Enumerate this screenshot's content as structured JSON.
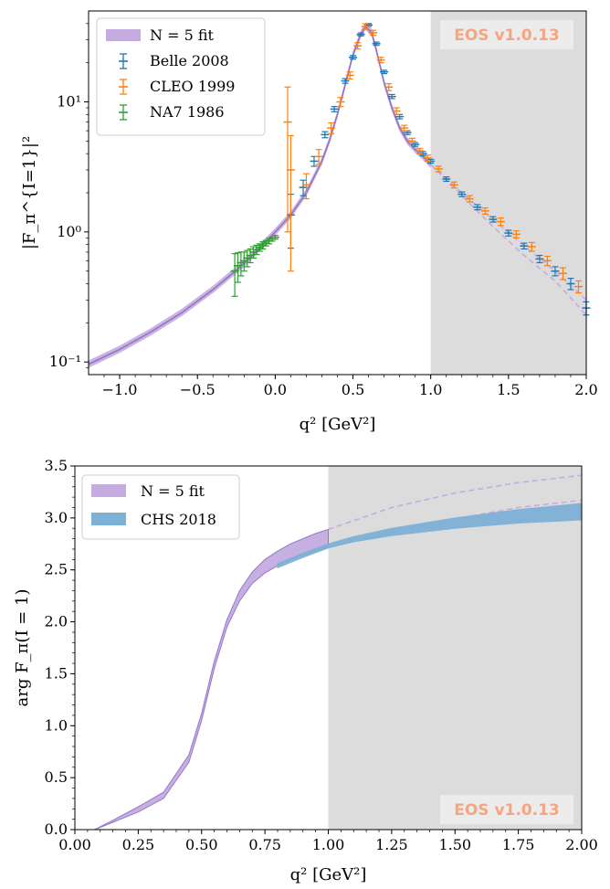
{
  "watermark": "EOS v1.0.13",
  "colors": {
    "fit": "#9370c8",
    "fit_band": "#c4abe0",
    "belle": "#1f77b4",
    "cleo": "#ff7f0e",
    "na7": "#2ca02c",
    "chs": "#7eb1d6",
    "shade": "#dcdcdc",
    "watermark": "#f4a582"
  },
  "chart_data": [
    {
      "type": "line",
      "xlabel": "q² [GeV²]",
      "ylabel": "|F_π^{I=1}|²",
      "yscale": "log",
      "xlim": [
        -1.2,
        2.0
      ],
      "ylim": [
        0.08,
        50
      ],
      "xticks": [
        "−1.0",
        "−0.5",
        "0.0",
        "0.5",
        "1.0",
        "1.5",
        "2.0"
      ],
      "xtick_values": [
        -1.0,
        -0.5,
        0.0,
        0.5,
        1.0,
        1.5,
        2.0
      ],
      "yticks": [
        "10⁻¹",
        "10⁰",
        "10¹"
      ],
      "ytick_values": [
        0.1,
        1,
        10
      ],
      "shaded_region": [
        1.0,
        2.0
      ],
      "legend_position": "top-left",
      "series": [
        {
          "name": "N = 5 fit",
          "kind": "band",
          "x": [
            -1.2,
            -1.0,
            -0.8,
            -0.6,
            -0.4,
            -0.2,
            0.0,
            0.1,
            0.2,
            0.3,
            0.35,
            0.4,
            0.45,
            0.5,
            0.55,
            0.58,
            0.62,
            0.65,
            0.7,
            0.75,
            0.8,
            0.85,
            0.9,
            0.95,
            1.0
          ],
          "y": [
            0.096,
            0.125,
            0.17,
            0.24,
            0.36,
            0.57,
            1.0,
            1.35,
            2.0,
            3.5,
            5.1,
            8.0,
            13.5,
            23.0,
            33.0,
            38.0,
            34.0,
            25.0,
            14.0,
            9.0,
            6.3,
            5.0,
            4.3,
            3.8,
            3.3
          ]
        },
        {
          "name": "N = 5 fit (extrapolation, lower)",
          "kind": "dashed",
          "x": [
            1.0,
            1.2,
            1.4,
            1.6,
            1.8,
            2.0
          ],
          "y": [
            3.3,
            1.9,
            1.1,
            0.66,
            0.42,
            0.23
          ]
        },
        {
          "name": "N = 5 fit (extrapolation, upper)",
          "kind": "dashed",
          "x": [
            1.0,
            1.2,
            1.4,
            1.6,
            1.8,
            2.0
          ],
          "y": [
            3.3,
            2.0,
            1.25,
            0.78,
            0.5,
            0.3
          ]
        },
        {
          "name": "Belle 2008",
          "kind": "errorbar",
          "x": [
            0.1,
            0.18,
            0.25,
            0.32,
            0.38,
            0.45,
            0.5,
            0.55,
            0.6,
            0.65,
            0.7,
            0.75,
            0.8,
            0.85,
            0.9,
            0.95,
            1.0,
            1.1,
            1.2,
            1.3,
            1.4,
            1.5,
            1.6,
            1.7,
            1.8,
            1.9,
            2.0
          ],
          "y": [
            1.35,
            2.2,
            3.5,
            5.6,
            8.8,
            14.5,
            22.0,
            33.0,
            39.0,
            28.0,
            17.0,
            11.0,
            7.7,
            5.8,
            4.7,
            4.0,
            3.5,
            2.55,
            1.95,
            1.55,
            1.25,
            0.98,
            0.78,
            0.62,
            0.5,
            0.4,
            0.26
          ],
          "err": [
            0.6,
            0.3,
            0.3,
            0.3,
            0.4,
            0.6,
            0.7,
            0.9,
            1.0,
            0.8,
            0.5,
            0.4,
            0.3,
            0.2,
            0.15,
            0.15,
            0.12,
            0.1,
            0.08,
            0.07,
            0.06,
            0.05,
            0.04,
            0.04,
            0.04,
            0.04,
            0.03
          ]
        },
        {
          "name": "CLEO 1999",
          "kind": "errorbar",
          "x": [
            0.08,
            0.1,
            0.2,
            0.28,
            0.36,
            0.42,
            0.48,
            0.53,
            0.58,
            0.63,
            0.68,
            0.73,
            0.78,
            0.83,
            0.88,
            0.93,
            0.98,
            1.05,
            1.15,
            1.25,
            1.35,
            1.45,
            1.55,
            1.65,
            1.75,
            1.85,
            1.95
          ],
          "y": [
            7.0,
            3.0,
            2.3,
            3.8,
            6.3,
            10.0,
            16.0,
            27.0,
            38.0,
            34.0,
            21.0,
            13.0,
            8.5,
            6.3,
            5.0,
            4.2,
            3.7,
            3.05,
            2.3,
            1.8,
            1.45,
            1.2,
            0.96,
            0.77,
            0.6,
            0.48,
            0.38
          ],
          "err": [
            6.0,
            2.5,
            0.5,
            0.5,
            0.6,
            0.8,
            1.0,
            1.5,
            1.8,
            1.5,
            1.0,
            0.8,
            0.5,
            0.3,
            0.25,
            0.2,
            0.2,
            0.15,
            0.12,
            0.1,
            0.08,
            0.08,
            0.06,
            0.06,
            0.05,
            0.05,
            0.04
          ]
        },
        {
          "name": "NA7 1986",
          "kind": "errorbar",
          "x": [
            -0.26,
            -0.24,
            -0.22,
            -0.2,
            -0.18,
            -0.16,
            -0.14,
            -0.12,
            -0.1,
            -0.08,
            -0.06,
            -0.04,
            -0.02,
            0.0
          ],
          "y": [
            0.5,
            0.55,
            0.58,
            0.6,
            0.63,
            0.66,
            0.7,
            0.73,
            0.76,
            0.79,
            0.82,
            0.85,
            0.88,
            0.91
          ],
          "err": [
            0.18,
            0.14,
            0.12,
            0.1,
            0.09,
            0.08,
            0.07,
            0.06,
            0.05,
            0.05,
            0.04,
            0.04,
            0.03,
            0.03
          ]
        }
      ]
    },
    {
      "type": "line",
      "xlabel": "q² [GeV²]",
      "ylabel": "arg F_π(I = 1)",
      "xlim": [
        0.0,
        2.0
      ],
      "ylim": [
        0.0,
        3.5
      ],
      "xticks": [
        "0.00",
        "0.25",
        "0.50",
        "0.75",
        "1.00",
        "1.25",
        "1.50",
        "1.75",
        "2.00"
      ],
      "xtick_values": [
        0.0,
        0.25,
        0.5,
        0.75,
        1.0,
        1.25,
        1.5,
        1.75,
        2.0
      ],
      "yticks": [
        "0.0",
        "0.5",
        "1.0",
        "1.5",
        "2.0",
        "2.5",
        "3.0",
        "3.5"
      ],
      "ytick_values": [
        0.0,
        0.5,
        1.0,
        1.5,
        2.0,
        2.5,
        3.0,
        3.5
      ],
      "shaded_region": [
        1.0,
        2.0
      ],
      "legend_position": "top-left",
      "series": [
        {
          "name": "N = 5 fit",
          "kind": "band",
          "x": [
            0.078,
            0.15,
            0.25,
            0.35,
            0.45,
            0.5,
            0.55,
            0.6,
            0.65,
            0.7,
            0.75,
            0.8,
            0.85,
            0.9,
            0.95,
            1.0
          ],
          "lower": [
            0.0,
            0.07,
            0.17,
            0.3,
            0.65,
            1.05,
            1.55,
            1.95,
            2.2,
            2.37,
            2.47,
            2.54,
            2.6,
            2.64,
            2.68,
            2.72
          ],
          "upper": [
            0.0,
            0.09,
            0.22,
            0.36,
            0.72,
            1.12,
            1.62,
            2.02,
            2.3,
            2.48,
            2.6,
            2.68,
            2.75,
            2.8,
            2.85,
            2.89
          ]
        },
        {
          "name": "N = 5 fit (extrapolation, upper)",
          "kind": "dashed",
          "x": [
            1.0,
            1.25,
            1.5,
            1.75,
            2.0
          ],
          "y": [
            2.89,
            3.1,
            3.24,
            3.34,
            3.41
          ]
        },
        {
          "name": "N = 5 fit (extrapolation, lower)",
          "kind": "dashed",
          "x": [
            1.0,
            1.25,
            1.5,
            1.75,
            2.0
          ],
          "y": [
            2.72,
            2.86,
            2.99,
            3.1,
            3.17
          ]
        },
        {
          "name": "CHS 2018",
          "kind": "band",
          "x": [
            0.8,
            0.9,
            1.0,
            1.1,
            1.25,
            1.5,
            1.75,
            2.0
          ],
          "lower": [
            2.52,
            2.62,
            2.71,
            2.77,
            2.83,
            2.9,
            2.95,
            2.98
          ],
          "upper": [
            2.56,
            2.66,
            2.75,
            2.82,
            2.9,
            3.0,
            3.08,
            3.14
          ]
        }
      ]
    }
  ]
}
